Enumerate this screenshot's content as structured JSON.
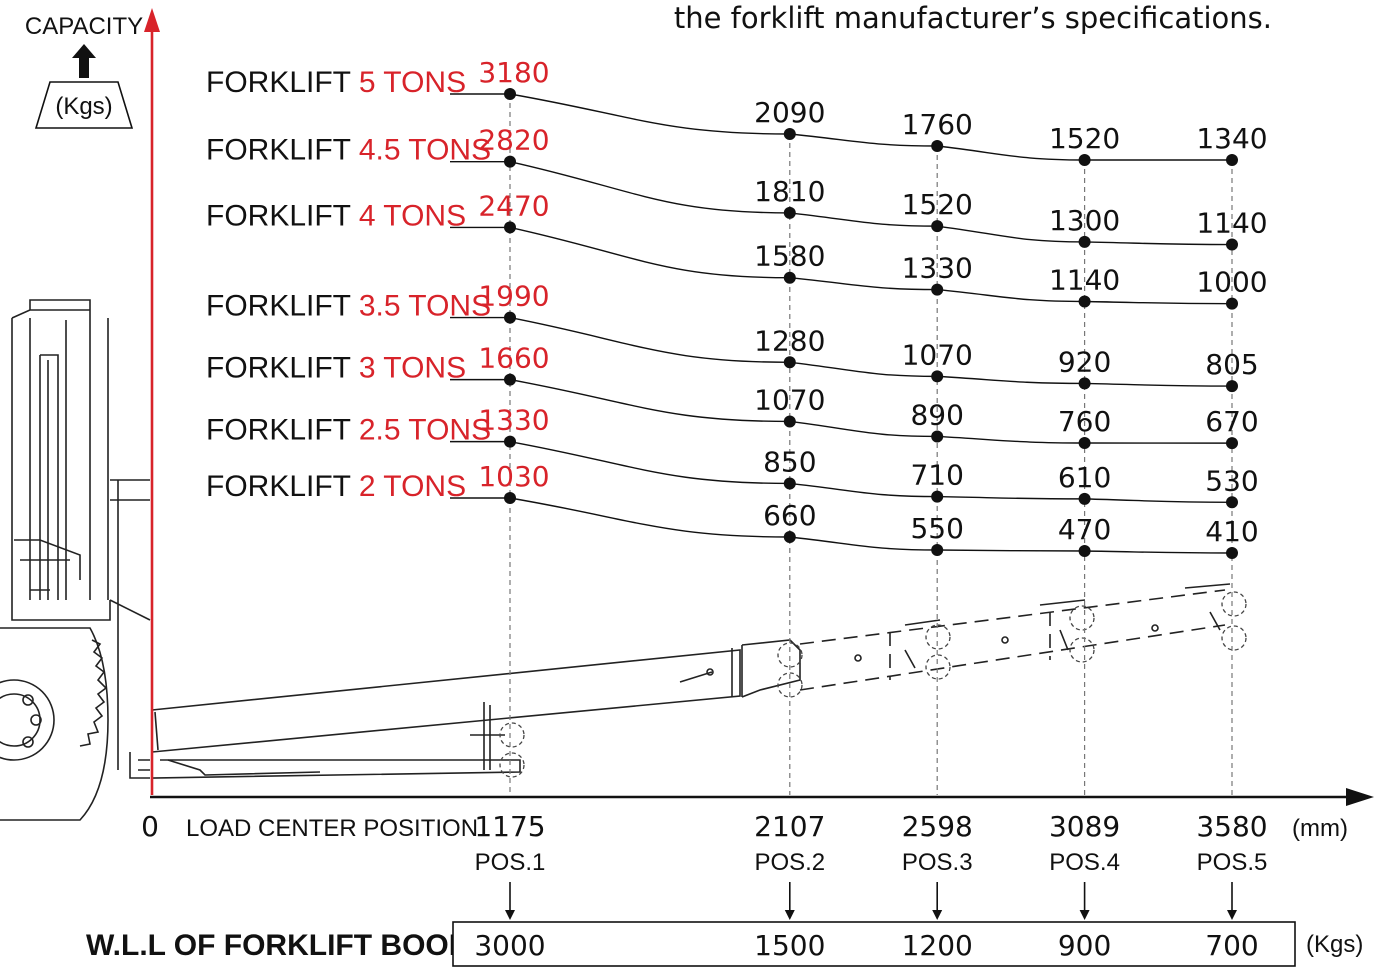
{
  "header_note": "the forklift manufacturer’s specifications.",
  "y_axis": {
    "label": "CAPACITY",
    "unit": "(Kgs)"
  },
  "x_axis": {
    "origin": "0",
    "label": "LOAD CENTER POSITION",
    "unit": "(mm)"
  },
  "chart_data": {
    "type": "line",
    "x": [
      1175,
      2107,
      2598,
      3089,
      3580
    ],
    "positions": [
      "POS.1",
      "POS.2",
      "POS.3",
      "POS.4",
      "POS.5"
    ],
    "series": [
      {
        "name_prefix": "FORKLIFT ",
        "name_value": "5 TONS",
        "values": [
          3180,
          2090,
          1760,
          1520,
          1340
        ]
      },
      {
        "name_prefix": "FORKLIFT ",
        "name_value": "4.5 TONS",
        "values": [
          2820,
          1810,
          1520,
          1300,
          1140
        ]
      },
      {
        "name_prefix": "FORKLIFT ",
        "name_value": "4 TONS",
        "values": [
          2470,
          1580,
          1330,
          1140,
          1000
        ]
      },
      {
        "name_prefix": "FORKLIFT ",
        "name_value": "3.5 TONS",
        "values": [
          1990,
          1280,
          1070,
          920,
          805
        ]
      },
      {
        "name_prefix": "FORKLIFT ",
        "name_value": "3 TONS",
        "values": [
          1660,
          1070,
          890,
          760,
          670
        ]
      },
      {
        "name_prefix": "FORKLIFT ",
        "name_value": "2.5 TONS",
        "values": [
          1330,
          850,
          710,
          610,
          530
        ]
      },
      {
        "name_prefix": "FORKLIFT ",
        "name_value": "2 TONS",
        "values": [
          1030,
          660,
          550,
          470,
          410
        ]
      }
    ],
    "wll": {
      "label": "W.L.L OF FORKLIFT BOOM",
      "unit": "(Kgs)",
      "values": [
        "3000",
        "1500",
        "1200",
        "900",
        "700"
      ]
    }
  },
  "colors": {
    "accent": "#d8232a",
    "ink": "#111111"
  }
}
